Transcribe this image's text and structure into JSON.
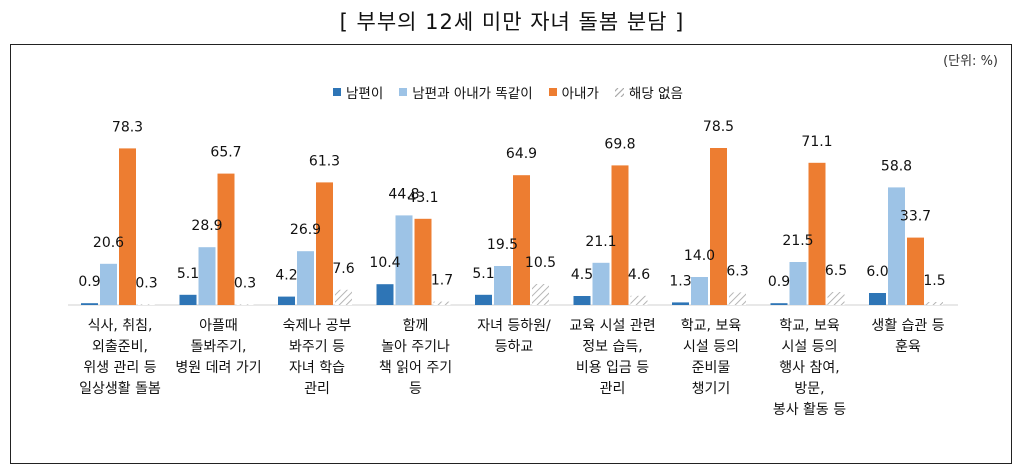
{
  "page_title": "[ 부부의 12세 미만 자녀 돌봄 분담 ]",
  "unit_label": "(단위: %)",
  "colors": {
    "husband": "#2e75b6",
    "equal": "#9dc3e6",
    "wife": "#ed7d31",
    "none_hatch": "#bfbfbf"
  },
  "chart_data": {
    "type": "bar",
    "title": "[ 부부의 12세 미만 자녀 돌봄 분담 ]",
    "unit": "(단위: %)",
    "xlabel": "",
    "ylabel": "",
    "ylim": [
      0,
      100
    ],
    "grid": false,
    "legend_position": "top",
    "categories": [
      "식사, 취침,\n외출준비,\n위생 관리 등\n일상생활 돌봄",
      "아플때\n돌봐주기,\n병원 데려 가기",
      "숙제나 공부\n봐주기 등\n자녀 학습\n관리",
      "함께\n놀아 주기나\n책 읽어 주기\n등",
      "자녀 등하원/\n등하교",
      "교육 시설 관련\n정보 습득,\n비용 입금 등\n관리",
      "학교, 보육\n시설 등의\n준비물\n챙기기",
      "학교, 보육\n시설 등의\n행사 참여,\n방문,\n봉사 활동 등",
      "생활 습관 등\n훈육"
    ],
    "series": [
      {
        "name": "남편이",
        "values": [
          0.9,
          5.1,
          4.2,
          10.4,
          5.1,
          4.5,
          1.3,
          0.9,
          6.0
        ]
      },
      {
        "name": "남편과 아내가 똑같이",
        "values": [
          20.6,
          28.9,
          26.9,
          44.8,
          19.5,
          21.1,
          14.0,
          21.5,
          58.8
        ]
      },
      {
        "name": "아내가",
        "values": [
          78.3,
          65.7,
          61.3,
          43.1,
          64.9,
          69.8,
          78.5,
          71.1,
          33.7
        ]
      },
      {
        "name": "해당 없음",
        "values": [
          0.3,
          0.3,
          7.6,
          1.7,
          10.5,
          4.6,
          6.3,
          6.5,
          1.5
        ]
      }
    ],
    "value_labels": [
      [
        "0.9",
        "5.1",
        "4.2",
        "10.4",
        "5.1",
        "4.5",
        "1.3",
        "0.9",
        "6.0"
      ],
      [
        "20.6",
        "28.9",
        "26.9",
        "44.8",
        "19.5",
        "21.1",
        "14.0",
        "21.5",
        "58.8"
      ],
      [
        "78.3",
        "65.7",
        "61.3",
        "43.1",
        "64.9",
        "69.8",
        "78.5",
        "71.1",
        "33.7"
      ],
      [
        "0.3",
        "0.3",
        "7.6",
        "1.7",
        "10.5",
        "4.6",
        "6.3",
        "6.5",
        "1.5"
      ]
    ]
  }
}
